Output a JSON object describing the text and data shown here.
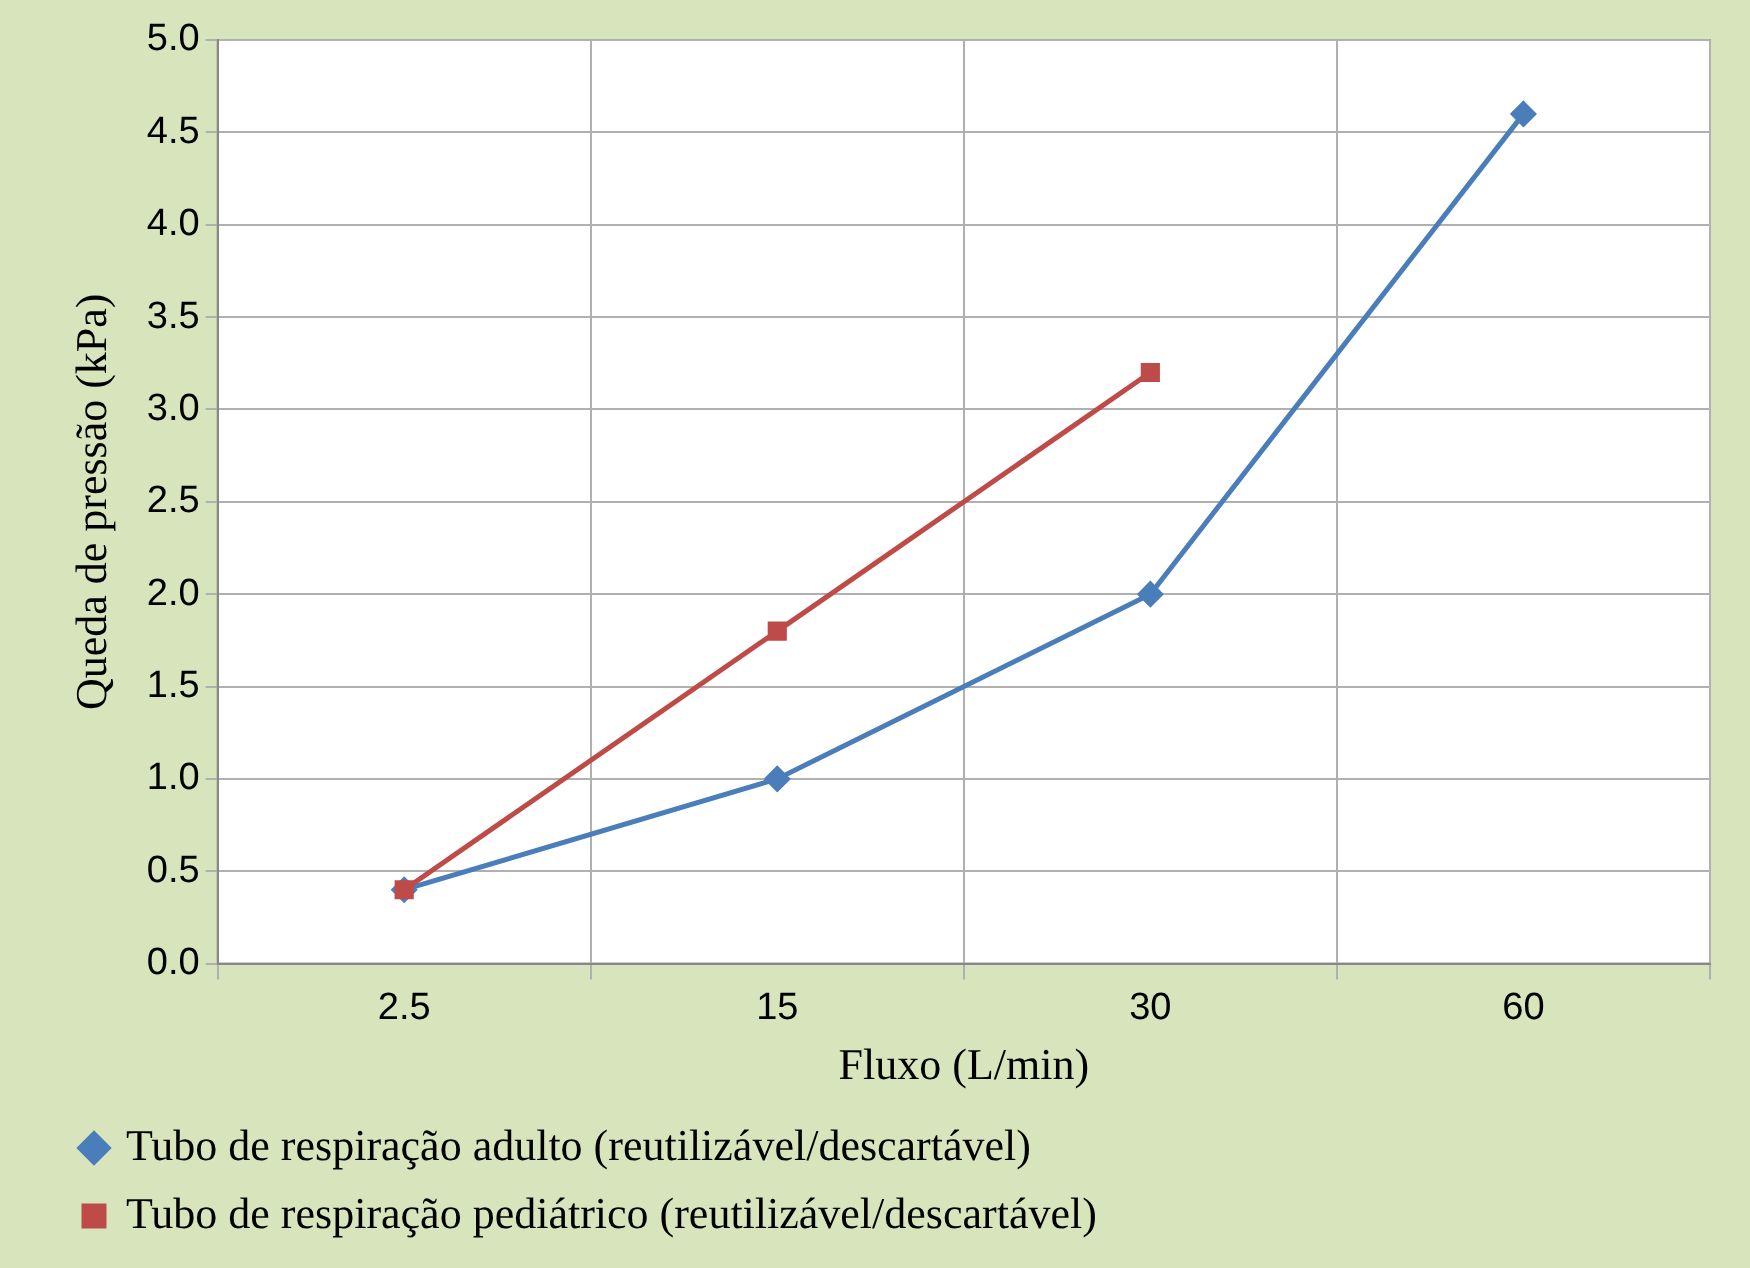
{
  "chart_data": {
    "type": "line",
    "xlabel": "Fluxo (L/min)",
    "ylabel": "Queda de pressão (kPa)",
    "categories": [
      "2.5",
      "15",
      "30",
      "60"
    ],
    "series": [
      {
        "name": "Tubo de respiração adulto (reutilizável/descartável)",
        "color": "#4a7ebb",
        "values": [
          0.4,
          1.0,
          2.0,
          4.6
        ],
        "marker": "diamond"
      },
      {
        "name": "Tubo de respiração pediátrico (reutilizável/descartável)",
        "color": "#be4b48",
        "values": [
          0.4,
          1.8,
          3.2,
          null
        ],
        "marker": "square"
      }
    ],
    "ylim": [
      0,
      5
    ],
    "yticks": [
      {
        "value": 0,
        "label": "0.0"
      },
      {
        "value": 0.5,
        "label": "0.5"
      },
      {
        "value": 1,
        "label": "1.0"
      },
      {
        "value": 1.5,
        "label": "1.5"
      },
      {
        "value": 2,
        "label": "2.0"
      },
      {
        "value": 2.5,
        "label": "2.5"
      },
      {
        "value": 3,
        "label": "3.0"
      },
      {
        "value": 3.5,
        "label": "3.5"
      },
      {
        "value": 4,
        "label": "4.0"
      },
      {
        "value": 4.5,
        "label": "4.5"
      },
      {
        "value": 5,
        "label": "5.0"
      }
    ],
    "grid": true,
    "legend": "bottom",
    "line_style": "solid"
  }
}
